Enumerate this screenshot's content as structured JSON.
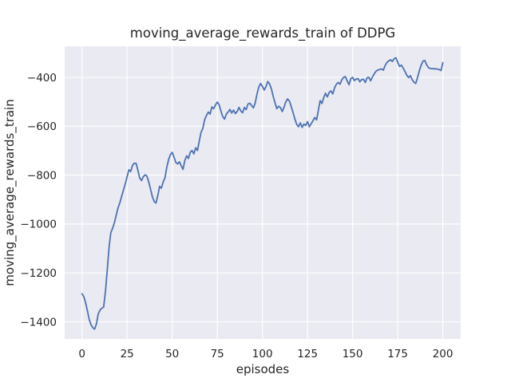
{
  "chart_data": {
    "type": "line",
    "title": "moving_average_rewards_train of DDPG",
    "xlabel": "episodes",
    "ylabel": "moving_average_rewards_train",
    "grid": true,
    "legend_position": "none",
    "xlim": [
      -9.6,
      209.9
    ],
    "ylim": [
      -1470,
      -272.8
    ],
    "x_ticks": [
      0,
      25,
      50,
      75,
      100,
      125,
      150,
      175,
      200
    ],
    "x_tick_labels": [
      "0",
      "25",
      "50",
      "75",
      "100",
      "125",
      "150",
      "175",
      "200"
    ],
    "y_ticks": [
      -400,
      -600,
      -800,
      -1000,
      -1200,
      -1400
    ],
    "y_tick_labels": [
      "−400",
      "−600",
      "−800",
      "−1000",
      "−1200",
      "−1400"
    ],
    "x_start": 0,
    "x_step": 1,
    "style": {
      "plot_background": "#eaeaf2",
      "grid_color": "#ffffff",
      "line_color": "#4c72b0",
      "text_color": "#262626",
      "figure_background": "#ffffff"
    },
    "series": [
      {
        "name": "moving_average_rewards_train",
        "color": "#4c72b0",
        "values": [
          -1285,
          -1297,
          -1322,
          -1355,
          -1390,
          -1412,
          -1424,
          -1430,
          -1408,
          -1368,
          -1352,
          -1344,
          -1340,
          -1275,
          -1190,
          -1095,
          -1035,
          -1017,
          -993,
          -963,
          -933,
          -913,
          -886,
          -860,
          -836,
          -806,
          -778,
          -785,
          -760,
          -751,
          -752,
          -780,
          -812,
          -822,
          -806,
          -799,
          -804,
          -828,
          -858,
          -888,
          -908,
          -914,
          -884,
          -846,
          -853,
          -828,
          -811,
          -768,
          -736,
          -716,
          -707,
          -726,
          -748,
          -754,
          -745,
          -762,
          -776,
          -740,
          -721,
          -732,
          -706,
          -699,
          -713,
          -688,
          -699,
          -660,
          -625,
          -608,
          -572,
          -556,
          -542,
          -550,
          -521,
          -528,
          -513,
          -501,
          -512,
          -538,
          -560,
          -571,
          -550,
          -542,
          -531,
          -546,
          -534,
          -548,
          -540,
          -523,
          -537,
          -545,
          -523,
          -532,
          -509,
          -506,
          -515,
          -525,
          -505,
          -468,
          -440,
          -425,
          -437,
          -452,
          -438,
          -417,
          -427,
          -448,
          -478,
          -505,
          -528,
          -518,
          -524,
          -540,
          -522,
          -500,
          -488,
          -498,
          -520,
          -545,
          -570,
          -592,
          -602,
          -586,
          -605,
          -591,
          -597,
          -581,
          -602,
          -590,
          -578,
          -564,
          -574,
          -535,
          -495,
          -507,
          -482,
          -465,
          -480,
          -462,
          -455,
          -468,
          -443,
          -428,
          -421,
          -428,
          -410,
          -400,
          -397,
          -415,
          -430,
          -405,
          -400,
          -413,
          -407,
          -405,
          -418,
          -409,
          -408,
          -421,
          -402,
          -400,
          -414,
          -398,
          -385,
          -375,
          -370,
          -368,
          -365,
          -371,
          -352,
          -339,
          -333,
          -328,
          -335,
          -324,
          -320,
          -338,
          -355,
          -350,
          -362,
          -376,
          -391,
          -401,
          -393,
          -409,
          -420,
          -425,
          -400,
          -372,
          -350,
          -333,
          -331,
          -348,
          -360,
          -364,
          -364,
          -365,
          -365,
          -366,
          -368,
          -372,
          -340
        ]
      }
    ]
  }
}
